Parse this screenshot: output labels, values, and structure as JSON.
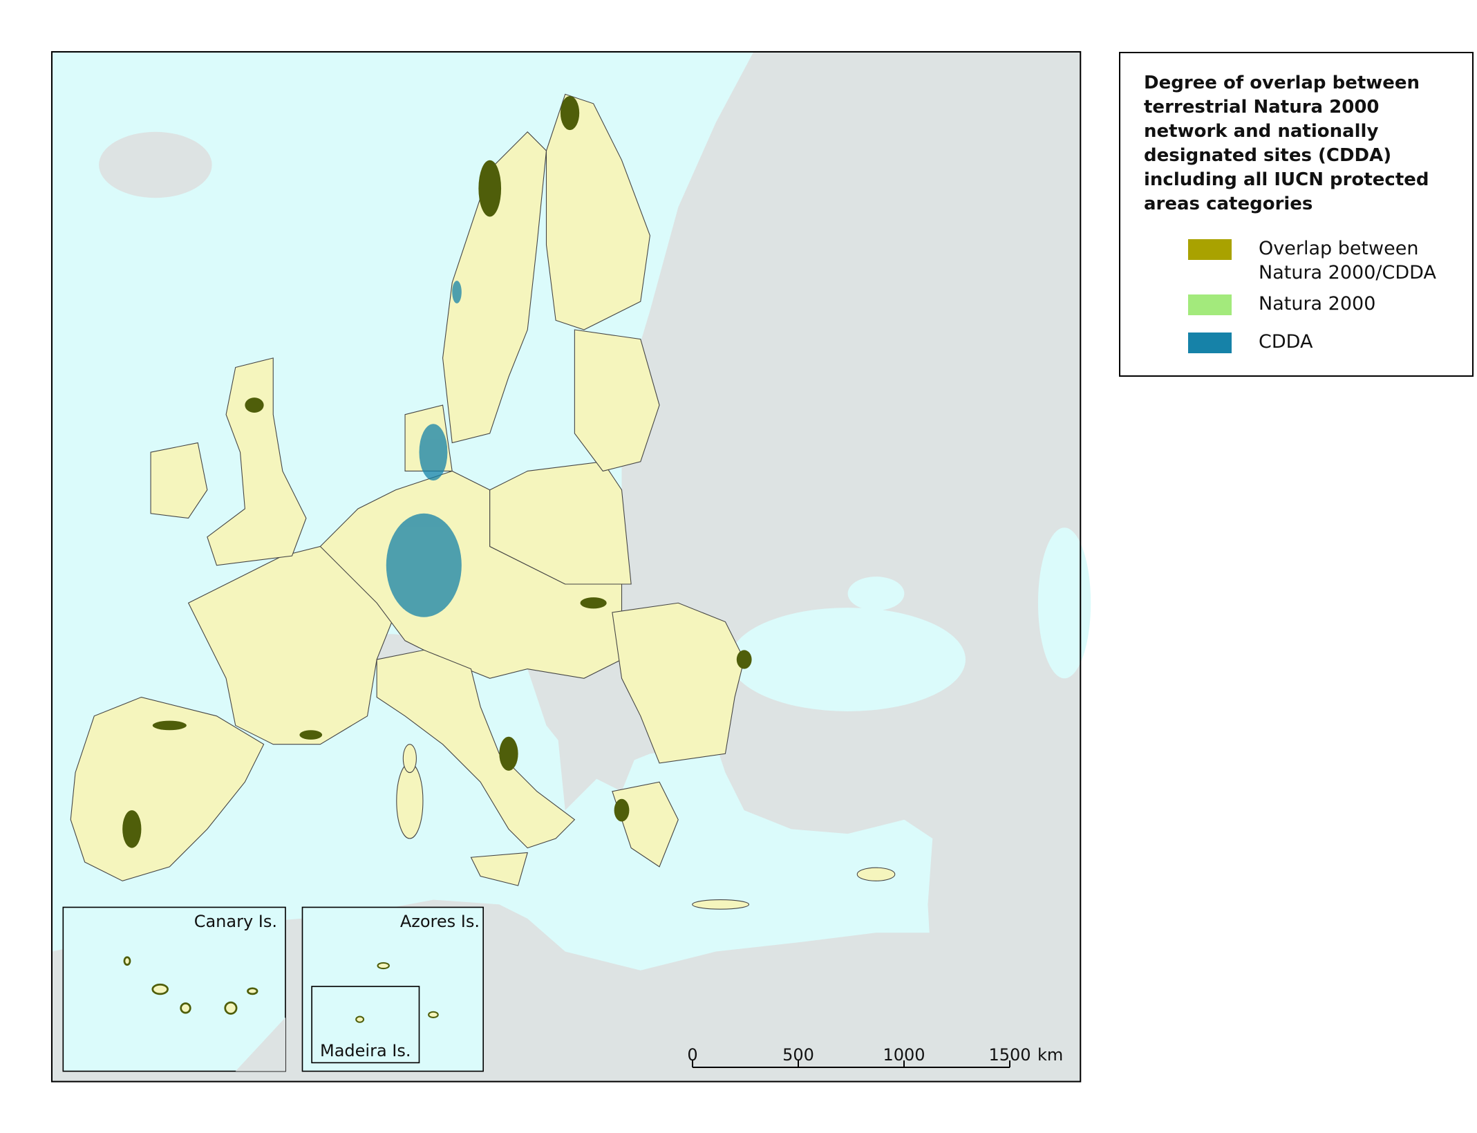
{
  "legend": {
    "title": "Degree of overlap between terrestrial Natura 2000 network and nationally designated sites (CDDA) including all IUCN protected areas categories",
    "items": [
      {
        "label": "Overlap between Natura 2000/CDDA",
        "color": "#a9a200"
      },
      {
        "label": "Natura 2000",
        "color": "#a3ea7c"
      },
      {
        "label": "CDDA",
        "color": "#1682a8"
      }
    ]
  },
  "insets": [
    "Canary Is.",
    "Azores Is.",
    "Madeira Is."
  ],
  "scale_bar": {
    "ticks": [
      0,
      500,
      1000,
      1500
    ],
    "unit": "km"
  }
}
